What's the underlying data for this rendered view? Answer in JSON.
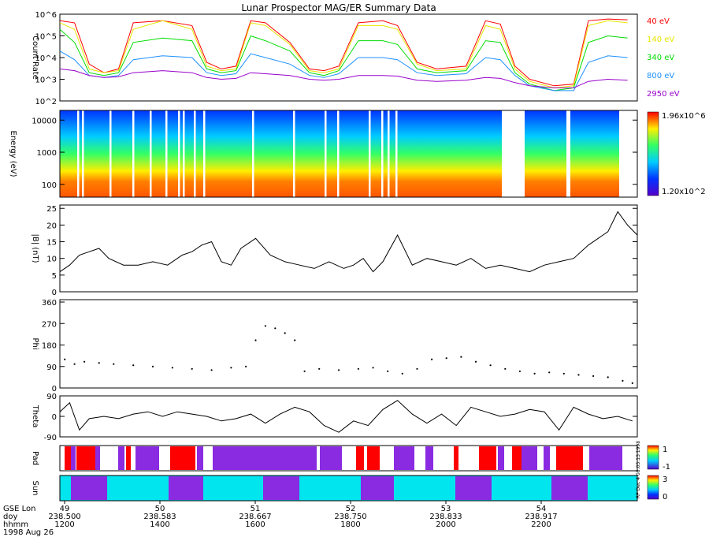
{
  "title": "Lunar Prospector MAG/ER Summary Data",
  "footer": {
    "row_labels": [
      "GSE Lon",
      "doy",
      "hhmm",
      "1998 Aug 26"
    ],
    "ticks": [
      {
        "lon": "49",
        "doy": "238.500",
        "hhmm": "1200"
      },
      {
        "lon": "50",
        "doy": "238.583",
        "hhmm": "1400"
      },
      {
        "lon": "51",
        "doy": "238.667",
        "hhmm": "1600"
      },
      {
        "lon": "52",
        "doy": "238.750",
        "hhmm": "1800"
      },
      {
        "lon": "53",
        "doy": "238.833",
        "hhmm": "2000"
      },
      {
        "lon": "54",
        "doy": "238.917",
        "hhmm": "2200"
      }
    ],
    "side_note": "RP Dec 4 08:03:13 1998"
  },
  "colors": {
    "e40": "#ff0000",
    "e140": "#e6e600",
    "e340": "#00dd00",
    "e800": "#1e90ff",
    "e2950": "#9900cc",
    "pad_purple": "#8a2be2",
    "pad_red": "#ff0000",
    "sun_cyan": "#00e5ee"
  },
  "chart_data": [
    {
      "type": "line",
      "name": "count-rate",
      "ylabel": "Count Rate",
      "yscale": "log",
      "ylim": [
        100,
        1000000
      ],
      "yticks": [
        "10^2",
        "10^3",
        "10^4",
        "10^5",
        "10^6"
      ],
      "xlim": [
        11.5,
        23.3
      ],
      "series": [
        {
          "name": "40 eV",
          "color": "#ff0000",
          "x": [
            11.5,
            11.8,
            12.1,
            12.4,
            12.7,
            13.0,
            13.6,
            14.2,
            14.5,
            14.8,
            15.1,
            15.4,
            15.7,
            16.2,
            16.6,
            16.9,
            17.2,
            17.6,
            18.1,
            18.4,
            18.8,
            19.2,
            19.8,
            20.2,
            20.5,
            20.8,
            21.1,
            21.6,
            22.0,
            22.3,
            22.7,
            23.1
          ],
          "y": [
            500000,
            400000,
            5000,
            2000,
            3000,
            400000,
            500000,
            300000,
            6000,
            3000,
            4000,
            500000,
            400000,
            50000,
            3000,
            2500,
            4000,
            400000,
            500000,
            300000,
            6000,
            3000,
            4000,
            500000,
            350000,
            4000,
            1000,
            500,
            600,
            500000,
            600000,
            550000
          ]
        },
        {
          "name": "140 eV",
          "color": "#e6e600",
          "x": [
            11.5,
            11.8,
            12.1,
            12.4,
            12.7,
            13.0,
            13.6,
            14.2,
            14.5,
            14.8,
            15.1,
            15.4,
            15.7,
            16.2,
            16.6,
            16.9,
            17.2,
            17.6,
            18.1,
            18.4,
            18.8,
            19.2,
            19.8,
            20.2,
            20.5,
            20.8,
            21.1,
            21.6,
            22.0,
            22.3,
            22.7,
            23.1
          ],
          "y": [
            400000,
            200000,
            3000,
            2000,
            2500,
            200000,
            500000,
            200000,
            4000,
            2500,
            3000,
            400000,
            300000,
            40000,
            2500,
            2000,
            3000,
            300000,
            300000,
            200000,
            5000,
            2500,
            3000,
            300000,
            200000,
            3000,
            800,
            400,
            500,
            300000,
            500000,
            400000
          ]
        },
        {
          "name": "340 eV",
          "color": "#00dd00",
          "x": [
            11.5,
            11.8,
            12.1,
            12.4,
            12.7,
            13.0,
            13.6,
            14.2,
            14.5,
            14.8,
            15.1,
            15.4,
            15.7,
            16.2,
            16.6,
            16.9,
            17.2,
            17.6,
            18.1,
            18.4,
            18.8,
            19.2,
            19.8,
            20.2,
            20.5,
            20.8,
            21.1,
            21.6,
            22.0,
            22.3,
            22.7,
            23.1
          ],
          "y": [
            200000,
            50000,
            2000,
            1500,
            2000,
            50000,
            80000,
            60000,
            3000,
            2000,
            2500,
            100000,
            60000,
            20000,
            2000,
            1500,
            2500,
            60000,
            60000,
            40000,
            3000,
            2000,
            2500,
            60000,
            50000,
            2000,
            600,
            300,
            400,
            50000,
            100000,
            80000
          ]
        },
        {
          "name": "800 eV",
          "color": "#1e90ff",
          "x": [
            11.5,
            11.8,
            12.1,
            12.4,
            12.7,
            13.0,
            13.6,
            14.2,
            14.5,
            14.8,
            15.1,
            15.4,
            15.7,
            16.2,
            16.6,
            16.9,
            17.2,
            17.6,
            18.1,
            18.4,
            18.8,
            19.2,
            19.8,
            20.2,
            20.5,
            20.8,
            21.1,
            21.6,
            22.0,
            22.3,
            22.7,
            23.1
          ],
          "y": [
            20000,
            8000,
            1500,
            1200,
            1500,
            8000,
            12000,
            10000,
            2000,
            1500,
            1800,
            15000,
            10000,
            5000,
            1500,
            1200,
            1800,
            10000,
            10000,
            8000,
            2000,
            1500,
            1800,
            10000,
            8000,
            1500,
            500,
            300,
            300,
            6000,
            12000,
            10000
          ]
        },
        {
          "name": "2950 eV",
          "color": "#9900cc",
          "x": [
            11.5,
            11.8,
            12.1,
            12.4,
            12.7,
            13.0,
            13.6,
            14.2,
            14.5,
            14.8,
            15.1,
            15.4,
            15.7,
            16.2,
            16.6,
            16.9,
            17.2,
            17.6,
            18.1,
            18.4,
            18.8,
            19.2,
            19.8,
            20.2,
            20.5,
            20.8,
            21.1,
            21.6,
            22.0,
            22.3,
            22.7,
            23.1
          ],
          "y": [
            3000,
            2500,
            1500,
            1200,
            1300,
            2000,
            2500,
            2000,
            1200,
            1000,
            1100,
            2000,
            1800,
            1500,
            1000,
            900,
            1000,
            1500,
            1500,
            1400,
            900,
            800,
            900,
            1200,
            1100,
            700,
            500,
            400,
            400,
            800,
            1000,
            900
          ]
        }
      ]
    },
    {
      "type": "heatmap",
      "name": "spectrogram",
      "ylabel": "Energy (eV)",
      "yscale": "log",
      "ylim": [
        40,
        20000
      ],
      "yticks": [
        "100",
        "1000",
        "10000"
      ],
      "colorbar": {
        "max_label": "1.96x10^6",
        "min_label": "1.20x10^2"
      }
    },
    {
      "type": "line",
      "name": "field-magnitude",
      "ylabel": "|B| (nT)",
      "ylim": [
        0,
        26
      ],
      "yticks": [
        "0",
        "5",
        "10",
        "15",
        "20",
        "25"
      ],
      "xlim": [
        11.5,
        23.3
      ],
      "series": [
        {
          "x": [
            11.5,
            11.7,
            11.9,
            12.1,
            12.3,
            12.5,
            12.8,
            13.1,
            13.4,
            13.7,
            14.0,
            14.2,
            14.4,
            14.6,
            14.8,
            15.0,
            15.2,
            15.5,
            15.8,
            16.1,
            16.4,
            16.7,
            17.0,
            17.3,
            17.5,
            17.7,
            17.9,
            18.1,
            18.4,
            18.7,
            19.0,
            19.3,
            19.6,
            19.9,
            20.2,
            20.5,
            20.8,
            21.1,
            21.4,
            21.7,
            22.0,
            22.3,
            22.5,
            22.7,
            22.9,
            23.1,
            23.3
          ],
          "y": [
            6,
            8,
            11,
            12,
            13,
            10,
            8,
            8,
            9,
            8,
            11,
            12,
            14,
            15,
            9,
            8,
            13,
            16,
            11,
            9,
            8,
            7,
            9,
            7,
            8,
            10,
            6,
            9,
            17,
            8,
            10,
            9,
            8,
            10,
            7,
            8,
            7,
            6,
            8,
            9,
            10,
            14,
            16,
            18,
            24,
            20,
            17
          ]
        }
      ]
    },
    {
      "type": "scatter",
      "name": "phi",
      "ylabel": "Phi",
      "ylim": [
        0,
        370
      ],
      "yticks": [
        "0",
        "90",
        "180",
        "270",
        "360"
      ],
      "xlim": [
        11.5,
        23.3
      ],
      "series": [
        {
          "x": [
            11.6,
            11.8,
            12.0,
            12.3,
            12.6,
            13.0,
            13.4,
            13.8,
            14.2,
            14.6,
            15.0,
            15.3,
            15.5,
            15.7,
            15.9,
            16.1,
            16.3,
            16.5,
            16.8,
            17.2,
            17.6,
            17.9,
            18.2,
            18.5,
            18.8,
            19.1,
            19.4,
            19.7,
            20.0,
            20.3,
            20.6,
            20.9,
            21.2,
            21.5,
            21.8,
            22.1,
            22.4,
            22.7,
            23.0,
            23.2
          ],
          "y": [
            120,
            100,
            110,
            105,
            100,
            95,
            90,
            85,
            80,
            75,
            85,
            90,
            200,
            260,
            250,
            230,
            200,
            70,
            80,
            75,
            80,
            85,
            70,
            60,
            80,
            120,
            125,
            130,
            110,
            95,
            80,
            70,
            60,
            65,
            60,
            55,
            50,
            45,
            30,
            20
          ]
        }
      ]
    },
    {
      "type": "line",
      "name": "theta",
      "ylabel": "Theta",
      "ylim": [
        -90,
        90
      ],
      "yticks": [
        "-90",
        "0",
        "90"
      ],
      "xlim": [
        11.5,
        23.3
      ],
      "series": [
        {
          "x": [
            11.5,
            11.7,
            11.9,
            12.1,
            12.4,
            12.7,
            13.0,
            13.3,
            13.6,
            13.9,
            14.2,
            14.5,
            14.8,
            15.1,
            15.4,
            15.7,
            16.0,
            16.3,
            16.6,
            16.9,
            17.2,
            17.5,
            17.8,
            18.1,
            18.4,
            18.7,
            19.0,
            19.3,
            19.6,
            19.9,
            20.2,
            20.5,
            20.8,
            21.1,
            21.4,
            21.7,
            22.0,
            22.3,
            22.6,
            22.9,
            23.2
          ],
          "y": [
            20,
            60,
            -60,
            -10,
            0,
            -10,
            10,
            20,
            0,
            20,
            10,
            0,
            -20,
            -10,
            10,
            -30,
            10,
            40,
            20,
            -40,
            -70,
            -20,
            -40,
            30,
            70,
            10,
            -30,
            10,
            -40,
            40,
            20,
            0,
            10,
            30,
            20,
            -60,
            40,
            10,
            -10,
            0,
            -20
          ]
        }
      ]
    },
    {
      "type": "bar",
      "name": "pad-strip",
      "ylabel": "Pad",
      "colorbar": {
        "max_label": "1",
        "min_label": "-1"
      }
    },
    {
      "type": "bar",
      "name": "sun-strip",
      "ylabel": "Sun",
      "colorbar": {
        "max_label": "3",
        "min_label": "0"
      }
    }
  ],
  "legend": [
    "40 eV",
    "140 eV",
    "340 eV",
    "800 eV",
    "2950 eV"
  ]
}
